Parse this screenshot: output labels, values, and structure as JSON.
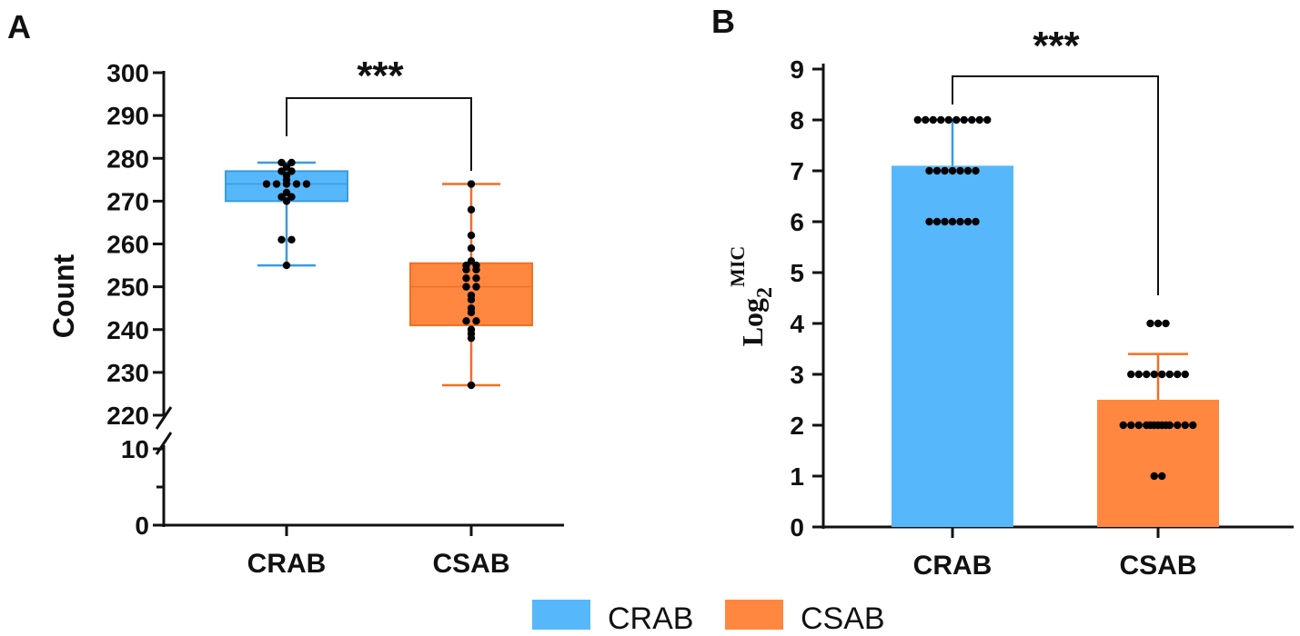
{
  "chart_data": [
    {
      "panel": "A",
      "type": "box",
      "ylabel": "Count",
      "categories": [
        "CRAB",
        "CSAB"
      ],
      "y_axis_break": [
        10,
        220
      ],
      "yticks_upper": [
        "220",
        "230",
        "240",
        "250",
        "260",
        "270",
        "280",
        "290",
        "300"
      ],
      "yticks_lower": [
        "0",
        "10"
      ],
      "ylim": [
        0,
        300
      ],
      "significance": "***",
      "series": [
        {
          "name": "CRAB",
          "min": 255,
          "q1": 270,
          "median": 274,
          "q3": 277,
          "max": 279,
          "points": [
            279,
            279,
            278,
            277,
            277,
            276,
            275,
            274,
            274,
            274,
            274,
            274,
            272,
            271,
            271,
            270,
            261,
            261,
            255
          ]
        },
        {
          "name": "CSAB",
          "min": 227,
          "q1": 241,
          "median": 250,
          "q3": 255.5,
          "max": 274,
          "points": [
            274,
            268,
            262,
            259,
            256,
            255,
            255,
            254,
            254,
            252,
            252,
            250,
            250,
            248,
            247,
            245,
            244,
            242,
            242,
            240,
            239,
            238,
            227
          ]
        }
      ]
    },
    {
      "panel": "B",
      "type": "bar",
      "ylabel_base": "Log",
      "ylabel_sub": "2",
      "ylabel_sup": "MIC",
      "categories": [
        "CRAB",
        "CSAB"
      ],
      "yticks": [
        "0",
        "1",
        "2",
        "3",
        "4",
        "5",
        "6",
        "7",
        "8",
        "9"
      ],
      "ylim": [
        0,
        9
      ],
      "significance": "***",
      "series": [
        {
          "name": "CRAB",
          "mean": 7.1,
          "sd": 0.9,
          "points": [
            8,
            8,
            8,
            8,
            8,
            8,
            8,
            8,
            8,
            8,
            7,
            7,
            7,
            7,
            7,
            7,
            7,
            6,
            6,
            6,
            6,
            6,
            6,
            6
          ]
        },
        {
          "name": "CSAB",
          "mean": 2.5,
          "sd": 0.9,
          "points": [
            4,
            4,
            4,
            3,
            3,
            3,
            3,
            3,
            3,
            3,
            3,
            2,
            2,
            2,
            2,
            2,
            2,
            2,
            2,
            2,
            2,
            2,
            2,
            2,
            1,
            1
          ]
        }
      ]
    }
  ],
  "legend": [
    {
      "label": "CRAB",
      "color": "#57b7fb"
    },
    {
      "label": "CSAB",
      "color": "#ff8740"
    }
  ],
  "colors": {
    "crab": "#57b7fb",
    "csab": "#ff8740",
    "crab_dark": "#3a9bde",
    "csab_dark": "#f26f22",
    "axis": "#111111"
  }
}
